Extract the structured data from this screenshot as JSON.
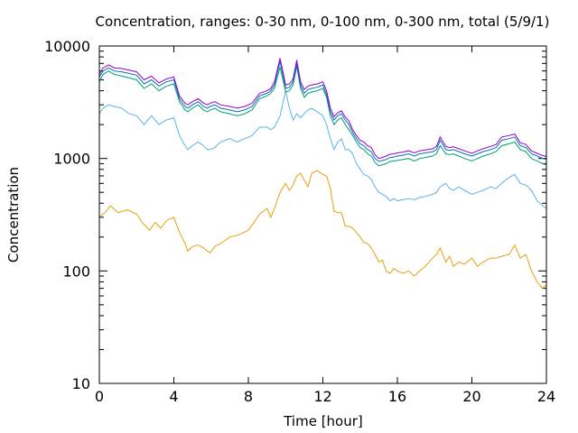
{
  "chart_data": {
    "type": "line",
    "title": "Concentration, ranges: 0-30 nm, 0-100 nm, 0-300 nm, total (5/9/1)",
    "xlabel": "Time [hour]",
    "ylabel": "Concentration",
    "xlim": [
      0,
      24
    ],
    "ylim": [
      10,
      10000
    ],
    "yscale": "log",
    "grid": false,
    "xticks": [
      0,
      4,
      8,
      12,
      16,
      20,
      24
    ],
    "yticks": [
      10,
      100,
      1000,
      10000
    ],
    "xtick_labels": [
      "0",
      "4",
      "8",
      "12",
      "16",
      "20",
      "24"
    ],
    "ytick_labels": [
      "10",
      "100",
      "1000",
      "10000"
    ],
    "series": [
      {
        "color": "#e5a00d",
        "x": [
          0,
          0.3,
          0.6,
          1,
          1.5,
          2,
          2.3,
          2.7,
          3,
          3.3,
          3.6,
          4,
          4.3,
          4.6,
          4.75,
          5,
          5.3,
          5.6,
          5.8,
          5.95,
          6.2,
          6.5,
          7,
          7.5,
          8,
          8.3,
          8.6,
          9,
          9.2,
          9.4,
          9.7,
          10,
          10.2,
          10.4,
          10.6,
          10.8,
          11,
          11.2,
          11.4,
          11.7,
          12,
          12.2,
          12.4,
          12.6,
          12.8,
          13,
          13.2,
          13.4,
          13.6,
          13.8,
          14,
          14.2,
          14.4,
          14.6,
          14.8,
          15,
          15.2,
          15.4,
          15.6,
          15.8,
          16,
          16.3,
          16.6,
          16.9,
          17.2,
          17.5,
          17.9,
          18.1,
          18.3,
          18.6,
          18.8,
          19,
          19.3,
          19.6,
          20,
          20.3,
          20.6,
          21,
          21.3,
          21.6,
          22,
          22.3,
          22.6,
          22.9,
          23.2,
          23.5,
          23.8,
          24
        ],
        "y": [
          300,
          330,
          380,
          330,
          350,
          320,
          270,
          230,
          270,
          240,
          280,
          300,
          220,
          175,
          150,
          165,
          170,
          160,
          150,
          145,
          165,
          175,
          200,
          210,
          230,
          270,
          320,
          360,
          300,
          360,
          500,
          600,
          520,
          580,
          700,
          740,
          640,
          560,
          740,
          780,
          720,
          700,
          540,
          340,
          330,
          330,
          250,
          250,
          240,
          220,
          200,
          180,
          175,
          160,
          140,
          120,
          125,
          100,
          95,
          105,
          100,
          95,
          100,
          90,
          100,
          110,
          130,
          140,
          160,
          120,
          135,
          110,
          120,
          115,
          130,
          110,
          120,
          130,
          130,
          135,
          140,
          170,
          130,
          140,
          100,
          80,
          70,
          75
        ]
      },
      {
        "color": "#56b4e9",
        "x": [
          0,
          0.2,
          0.5,
          0.8,
          1.2,
          1.6,
          2,
          2.4,
          2.8,
          3.2,
          3.6,
          4,
          4.3,
          4.6,
          4.75,
          5,
          5.3,
          5.6,
          5.8,
          5.95,
          6.2,
          6.5,
          7,
          7.4,
          7.8,
          8.2,
          8.6,
          9,
          9.2,
          9.4,
          9.7,
          10,
          10.2,
          10.4,
          10.6,
          10.8,
          11,
          11.2,
          11.4,
          11.7,
          12,
          12.2,
          12.4,
          12.6,
          12.8,
          13,
          13.2,
          13.4,
          13.6,
          13.8,
          14,
          14.2,
          14.4,
          14.6,
          14.8,
          15,
          15.2,
          15.4,
          15.6,
          15.8,
          16,
          16.3,
          16.6,
          16.9,
          17.2,
          17.5,
          17.9,
          18.1,
          18.3,
          18.6,
          18.8,
          19,
          19.3,
          19.6,
          20,
          20.3,
          20.6,
          21,
          21.3,
          21.6,
          22,
          22.3,
          22.6,
          22.9,
          23.2,
          23.5,
          23.8,
          24
        ],
        "y": [
          2500,
          2800,
          3000,
          2900,
          2800,
          2500,
          2400,
          2000,
          2400,
          2000,
          2200,
          2300,
          1600,
          1300,
          1200,
          1300,
          1400,
          1300,
          1200,
          1200,
          1250,
          1400,
          1500,
          1400,
          1500,
          1600,
          1900,
          1900,
          1800,
          1900,
          2400,
          4000,
          2800,
          2200,
          2500,
          2300,
          2500,
          2700,
          2800,
          2600,
          2400,
          2000,
          1500,
          1200,
          1400,
          1500,
          1200,
          1200,
          1100,
          900,
          800,
          720,
          700,
          650,
          560,
          500,
          480,
          460,
          420,
          440,
          420,
          430,
          440,
          430,
          450,
          460,
          480,
          500,
          560,
          600,
          540,
          520,
          560,
          520,
          480,
          500,
          520,
          560,
          540,
          600,
          680,
          720,
          600,
          580,
          520,
          420,
          380,
          360
        ]
      },
      {
        "color": "#009e73",
        "x": [
          0,
          0.2,
          0.5,
          0.8,
          1.2,
          1.6,
          2,
          2.4,
          2.8,
          3.2,
          3.6,
          4,
          4.3,
          4.6,
          4.75,
          5,
          5.3,
          5.6,
          5.8,
          5.95,
          6.2,
          6.5,
          7,
          7.4,
          7.8,
          8.2,
          8.6,
          9,
          9.2,
          9.4,
          9.7,
          10,
          10.2,
          10.4,
          10.6,
          10.8,
          11,
          11.2,
          11.4,
          11.7,
          12,
          12.2,
          12.4,
          12.6,
          12.8,
          13,
          13.2,
          13.4,
          13.6,
          13.8,
          14,
          14.2,
          14.4,
          14.6,
          14.8,
          15,
          15.2,
          15.4,
          15.6,
          15.8,
          16,
          16.3,
          16.6,
          16.9,
          17.2,
          17.5,
          17.9,
          18.1,
          18.3,
          18.6,
          18.8,
          19,
          19.3,
          19.6,
          20,
          20.3,
          20.6,
          21,
          21.3,
          21.6,
          22,
          22.3,
          22.6,
          22.9,
          23.2,
          23.5,
          23.8,
          24
        ],
        "y": [
          4800,
          5600,
          6000,
          5600,
          5400,
          5200,
          5000,
          4200,
          4600,
          4000,
          4400,
          4600,
          3200,
          2700,
          2600,
          2800,
          3000,
          2700,
          2600,
          2700,
          2800,
          2600,
          2500,
          2400,
          2500,
          2700,
          3400,
          3600,
          3800,
          4200,
          6500,
          3900,
          4000,
          4500,
          6600,
          4200,
          3500,
          3800,
          3900,
          4000,
          4200,
          3500,
          2400,
          2000,
          2200,
          2300,
          2000,
          1800,
          1600,
          1400,
          1250,
          1200,
          1100,
          1050,
          920,
          860,
          880,
          900,
          940,
          950,
          960,
          980,
          1000,
          950,
          1000,
          1020,
          1050,
          1100,
          1300,
          1100,
          1080,
          1100,
          1050,
          1000,
          950,
          1000,
          1050,
          1100,
          1150,
          1300,
          1350,
          1400,
          1200,
          1150,
          1000,
          950,
          900,
          880
        ]
      },
      {
        "color": "#0072b2",
        "x": [
          0,
          0.2,
          0.5,
          0.8,
          1.2,
          1.6,
          2,
          2.4,
          2.8,
          3.2,
          3.6,
          4,
          4.3,
          4.6,
          4.75,
          5,
          5.3,
          5.6,
          5.8,
          5.95,
          6.2,
          6.5,
          7,
          7.4,
          7.8,
          8.2,
          8.6,
          9,
          9.2,
          9.4,
          9.7,
          10,
          10.2,
          10.4,
          10.6,
          10.8,
          11,
          11.2,
          11.4,
          11.7,
          12,
          12.2,
          12.4,
          12.6,
          12.8,
          13,
          13.2,
          13.4,
          13.6,
          13.8,
          14,
          14.2,
          14.4,
          14.6,
          14.8,
          15,
          15.2,
          15.4,
          15.6,
          15.8,
          16,
          16.3,
          16.6,
          16.9,
          17.2,
          17.5,
          17.9,
          18.1,
          18.3,
          18.6,
          18.8,
          19,
          19.3,
          19.6,
          20,
          20.3,
          20.6,
          21,
          21.3,
          21.6,
          22,
          22.3,
          22.6,
          22.9,
          23.2,
          23.5,
          23.8,
          24
        ],
        "y": [
          5300,
          6000,
          6400,
          6000,
          5900,
          5700,
          5500,
          4600,
          5000,
          4400,
          4800,
          5000,
          3400,
          2900,
          2800,
          3000,
          3200,
          2900,
          2800,
          2900,
          3000,
          2800,
          2700,
          2600,
          2700,
          2900,
          3600,
          3800,
          4000,
          4500,
          7300,
          4200,
          4300,
          4800,
          7000,
          4500,
          3800,
          4100,
          4200,
          4300,
          4500,
          3700,
          2600,
          2200,
          2400,
          2500,
          2200,
          2000,
          1700,
          1500,
          1350,
          1300,
          1200,
          1150,
          1000,
          940,
          960,
          980,
          1020,
          1030,
          1050,
          1070,
          1100,
          1050,
          1100,
          1120,
          1150,
          1200,
          1450,
          1200,
          1180,
          1200,
          1150,
          1100,
          1050,
          1100,
          1150,
          1200,
          1250,
          1450,
          1500,
          1550,
          1300,
          1250,
          1100,
          1050,
          1000,
          980
        ]
      },
      {
        "color": "#9400d3",
        "x": [
          0,
          0.2,
          0.5,
          0.8,
          1.2,
          1.6,
          2,
          2.4,
          2.8,
          3.2,
          3.6,
          4,
          4.3,
          4.6,
          4.75,
          5,
          5.3,
          5.6,
          5.8,
          5.95,
          6.2,
          6.5,
          7,
          7.4,
          7.8,
          8.2,
          8.6,
          9,
          9.2,
          9.4,
          9.7,
          10,
          10.2,
          10.4,
          10.6,
          10.8,
          11,
          11.2,
          11.4,
          11.7,
          12,
          12.2,
          12.4,
          12.6,
          12.8,
          13,
          13.2,
          13.4,
          13.6,
          13.8,
          14,
          14.2,
          14.4,
          14.6,
          14.8,
          15,
          15.2,
          15.4,
          15.6,
          15.8,
          16,
          16.3,
          16.6,
          16.9,
          17.2,
          17.5,
          17.9,
          18.1,
          18.3,
          18.6,
          18.8,
          19,
          19.3,
          19.6,
          20,
          20.3,
          20.6,
          21,
          21.3,
          21.6,
          22,
          22.3,
          22.6,
          22.9,
          23.2,
          23.5,
          23.8,
          24
        ],
        "y": [
          5600,
          6400,
          6800,
          6400,
          6300,
          6100,
          5900,
          5000,
          5400,
          4700,
          5100,
          5300,
          3600,
          3100,
          3000,
          3200,
          3400,
          3100,
          3000,
          3100,
          3200,
          3000,
          2900,
          2800,
          2900,
          3100,
          3800,
          4000,
          4200,
          4800,
          7800,
          4500,
          4600,
          5100,
          7500,
          4800,
          4100,
          4400,
          4500,
          4600,
          4800,
          4000,
          2800,
          2350,
          2550,
          2650,
          2350,
          2150,
          1800,
          1600,
          1450,
          1400,
          1300,
          1250,
          1080,
          1000,
          1020,
          1050,
          1090,
          1100,
          1120,
          1140,
          1170,
          1120,
          1170,
          1190,
          1220,
          1280,
          1550,
          1280,
          1250,
          1270,
          1220,
          1170,
          1110,
          1170,
          1220,
          1280,
          1330,
          1550,
          1600,
          1650,
          1380,
          1330,
          1170,
          1110,
          1060,
          1040
        ]
      }
    ]
  }
}
